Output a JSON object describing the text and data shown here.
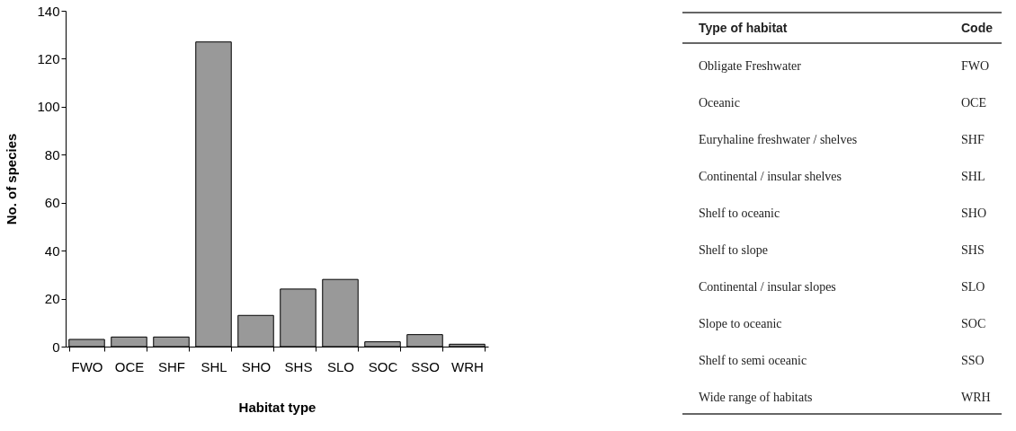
{
  "chart_data": [
    {
      "type": "bar",
      "xlabel": "Habitat type",
      "ylabel": "No. of species",
      "categories": [
        "FWO",
        "OCE",
        "SHF",
        "SHL",
        "SHO",
        "SHS",
        "SLO",
        "SOC",
        "SSO",
        "WRH"
      ],
      "values": [
        3,
        4,
        4,
        127,
        13,
        24,
        28,
        2,
        5,
        1
      ],
      "color": "#999999",
      "ylim": [
        0,
        140
      ],
      "yticks": [
        0,
        20,
        40,
        60,
        80,
        100,
        120,
        140
      ],
      "grid": false
    },
    {
      "type": "other",
      "annotations": [
        "Type of habitat",
        "Code",
        "Obligate Freshwater",
        "FWO",
        "Oceanic",
        "OCE",
        "Euryhaline freshwater / shelves",
        "SHF",
        "Continental / insular shelves",
        "SHL",
        "Shelf to oceanic",
        "SHO",
        "Shelf to slope",
        "SHS",
        "Continental / insular slopes",
        "SLO",
        "Slope to oceanic",
        "SOC",
        "Shelf to semi oceanic",
        "SSO",
        "Wide range of habitats",
        "WRH"
      ]
    }
  ]
}
